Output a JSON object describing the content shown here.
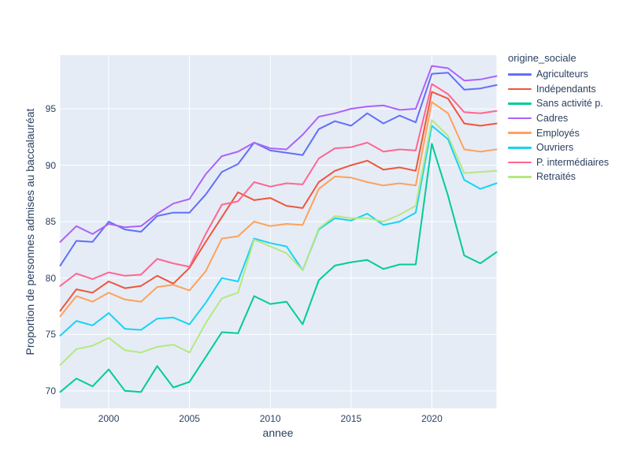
{
  "figure": {
    "background": "#ffffff",
    "plot_background": "#E5ECF6",
    "grid_color": "#ffffff",
    "text_color": "#2a3f5f"
  },
  "chart_data": {
    "type": "line",
    "title": "",
    "xlabel": "annee",
    "ylabel": "Proportion de personnes admises au baccalauréat",
    "legend_title": "origine_sociale",
    "legend_position": "right",
    "grid": true,
    "xlim": [
      1997,
      2024
    ],
    "ylim": [
      68.45,
      99.75
    ],
    "xticks": [
      2000,
      2005,
      2010,
      2015,
      2020
    ],
    "yticks": [
      70,
      75,
      80,
      85,
      90,
      95
    ],
    "x": [
      1997,
      1998,
      1999,
      2000,
      2001,
      2002,
      2003,
      2004,
      2005,
      2006,
      2007,
      2008,
      2009,
      2010,
      2011,
      2012,
      2013,
      2014,
      2015,
      2016,
      2017,
      2018,
      2019,
      2020,
      2021,
      2022,
      2023,
      2024
    ],
    "series": [
      {
        "name": "Agriculteurs",
        "color": "#636EFA",
        "values": [
          81.1,
          83.3,
          83.2,
          85.0,
          84.3,
          84.1,
          85.5,
          85.8,
          85.8,
          87.4,
          89.4,
          90.1,
          92.0,
          91.3,
          91.1,
          90.9,
          93.2,
          93.9,
          93.5,
          94.6,
          93.7,
          94.4,
          93.8,
          98.1,
          98.2,
          96.7,
          96.8,
          97.1
        ]
      },
      {
        "name": "Indépendants",
        "color": "#EF553B",
        "values": [
          77.1,
          79.0,
          78.7,
          79.7,
          79.1,
          79.3,
          80.2,
          79.5,
          80.9,
          83.2,
          85.4,
          87.6,
          86.9,
          87.1,
          86.4,
          86.2,
          88.5,
          89.5,
          90.0,
          90.4,
          89.6,
          89.8,
          89.5,
          96.5,
          95.9,
          93.7,
          93.5,
          93.7
        ]
      },
      {
        "name": "Sans activité p.",
        "color": "#00CC96",
        "values": [
          69.9,
          71.1,
          70.4,
          71.9,
          70.0,
          69.9,
          72.2,
          70.3,
          70.8,
          73.0,
          75.2,
          75.1,
          78.4,
          77.7,
          77.9,
          75.9,
          79.8,
          81.1,
          81.4,
          81.6,
          80.8,
          81.2,
          81.2,
          91.9,
          87.3,
          82.0,
          81.3,
          82.3
        ]
      },
      {
        "name": "Cadres",
        "color": "#AB63FA",
        "values": [
          83.2,
          84.6,
          83.9,
          84.8,
          84.5,
          84.6,
          85.7,
          86.6,
          87.0,
          89.2,
          90.8,
          91.2,
          92.0,
          91.5,
          91.4,
          92.7,
          94.3,
          94.6,
          95.0,
          95.2,
          95.3,
          94.9,
          95.0,
          98.8,
          98.6,
          97.5,
          97.6,
          97.9
        ]
      },
      {
        "name": "Employés",
        "color": "#FFA15A",
        "values": [
          76.6,
          78.4,
          77.9,
          78.7,
          78.1,
          77.9,
          79.2,
          79.4,
          78.9,
          80.6,
          83.5,
          83.7,
          85.0,
          84.6,
          84.8,
          84.7,
          87.9,
          89.0,
          88.9,
          88.5,
          88.2,
          88.4,
          88.2,
          95.6,
          94.6,
          91.4,
          91.2,
          91.4
        ]
      },
      {
        "name": "Ouvriers",
        "color": "#19D3F3",
        "values": [
          74.9,
          76.2,
          75.8,
          76.9,
          75.5,
          75.4,
          76.4,
          76.5,
          75.9,
          77.8,
          80.0,
          79.7,
          83.5,
          83.1,
          82.8,
          80.7,
          84.3,
          85.3,
          85.1,
          85.7,
          84.7,
          85.0,
          85.8,
          93.5,
          92.3,
          88.7,
          87.9,
          88.4
        ]
      },
      {
        "name": "P. intermédiaires",
        "color": "#FF6692",
        "values": [
          79.3,
          80.4,
          79.9,
          80.5,
          80.2,
          80.3,
          81.7,
          81.3,
          81.0,
          83.9,
          86.5,
          86.8,
          88.5,
          88.1,
          88.4,
          88.3,
          90.6,
          91.5,
          91.6,
          92.0,
          91.2,
          91.4,
          91.3,
          97.2,
          96.3,
          94.7,
          94.6,
          94.8
        ]
      },
      {
        "name": "Retraités",
        "color": "#B6E880",
        "values": [
          72.3,
          73.7,
          74.0,
          74.7,
          73.6,
          73.4,
          73.9,
          74.1,
          73.4,
          76.0,
          78.2,
          78.7,
          83.4,
          82.8,
          82.2,
          80.7,
          84.4,
          85.5,
          85.3,
          85.3,
          85.0,
          85.6,
          86.4,
          94.0,
          92.6,
          89.3,
          89.4,
          89.5
        ]
      }
    ]
  }
}
